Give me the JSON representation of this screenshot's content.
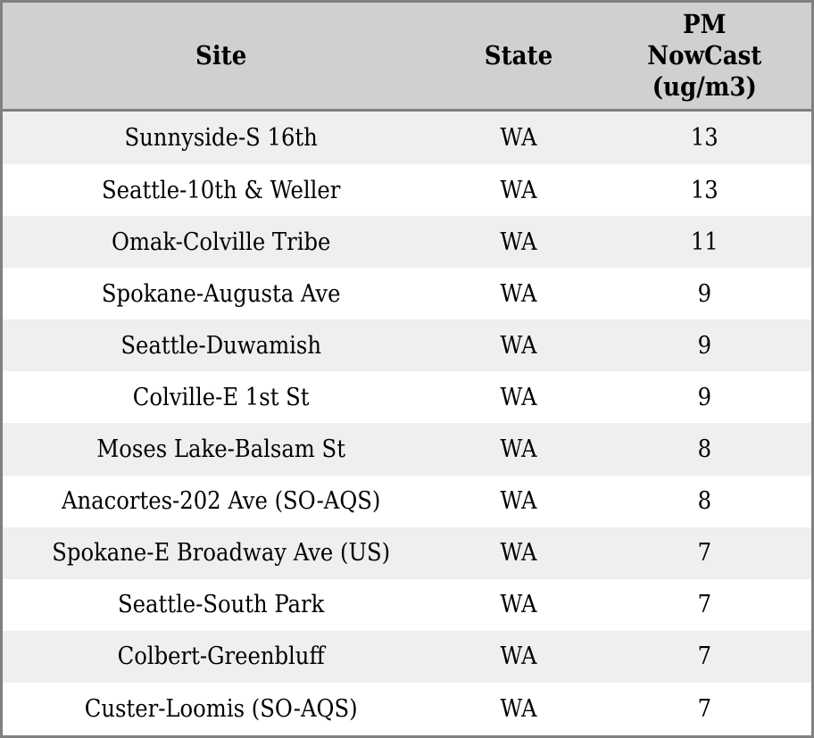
{
  "chart_data": {
    "type": "table",
    "columns": [
      "Site",
      "State",
      "PM NowCast (ug/m3)"
    ],
    "rows": [
      [
        "Sunnyside-S 16th",
        "WA",
        13
      ],
      [
        "Seattle-10th & Weller",
        "WA",
        13
      ],
      [
        "Omak-Colville Tribe",
        "WA",
        11
      ],
      [
        "Spokane-Augusta Ave",
        "WA",
        9
      ],
      [
        "Seattle-Duwamish",
        "WA",
        9
      ],
      [
        "Colville-E 1st St",
        "WA",
        9
      ],
      [
        "Moses Lake-Balsam St",
        "WA",
        8
      ],
      [
        "Anacortes-202 Ave (SO-AQS)",
        "WA",
        8
      ],
      [
        "Spokane-E Broadway Ave (US)",
        "WA",
        7
      ],
      [
        "Seattle-South Park",
        "WA",
        7
      ],
      [
        "Colbert-Greenbluff",
        "WA",
        7
      ],
      [
        "Custer-Loomis (SO-AQS)",
        "WA",
        7
      ]
    ],
    "layout": {
      "zebra_striping": true,
      "cell_alignment": "center",
      "header_position": "top"
    }
  },
  "header_display": {
    "site": "Site",
    "state": "State",
    "pm": "PM\nNowCast\n(ug/m3)"
  },
  "colors": {
    "border": "#808080",
    "header_bg": "#d0d0d0",
    "row_alt_bg": "#efefef",
    "row_bg": "#ffffff",
    "text": "#000000"
  }
}
